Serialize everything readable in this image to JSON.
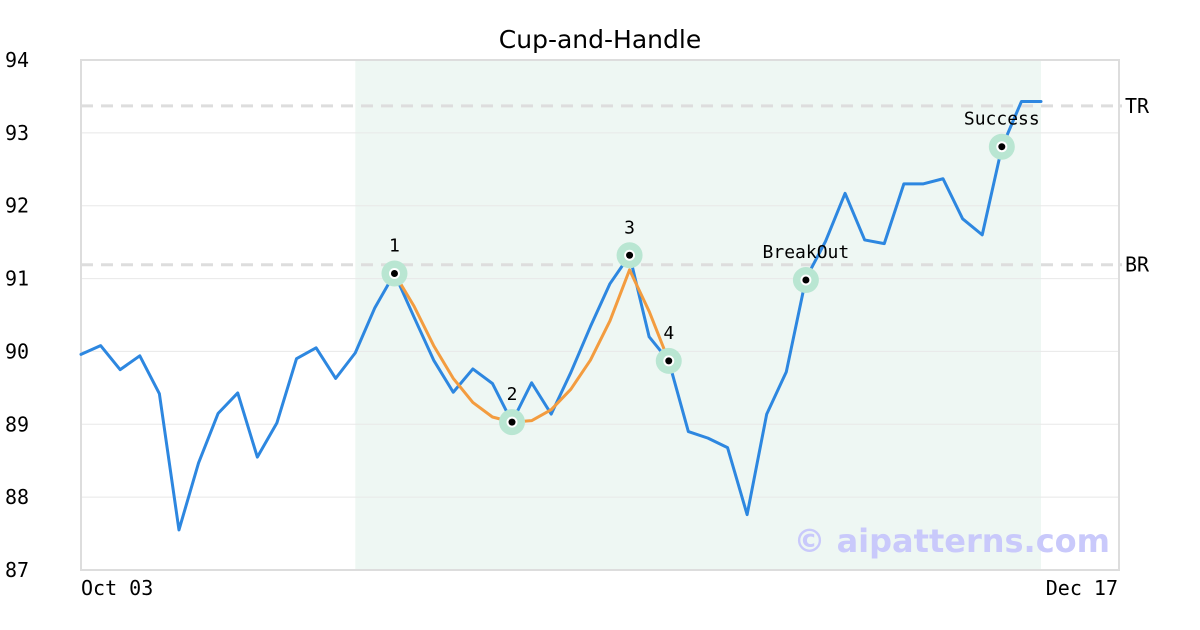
{
  "chart_data": {
    "type": "line",
    "title": "Cup-and-Handle",
    "ylim": [
      87,
      94
    ],
    "yticks": [
      87,
      88,
      89,
      90,
      91,
      92,
      93,
      94
    ],
    "x_start_label": "Oct 03",
    "x_end_label": "Dec 17",
    "grid": "horizontal",
    "series": [
      {
        "values": [
          89.96,
          90.08,
          89.75,
          89.94,
          89.42,
          87.55,
          88.47,
          89.15,
          89.43,
          88.55,
          89.02,
          89.9,
          90.05,
          89.63,
          89.98,
          90.6,
          91.07,
          90.47,
          89.88,
          89.44,
          89.76,
          89.56,
          89.03,
          89.57,
          89.14,
          89.71,
          90.34,
          90.93,
          91.32,
          90.2,
          89.87,
          88.9,
          88.81,
          88.68,
          87.76,
          89.14,
          89.72,
          91.0,
          91.51,
          92.17,
          91.53,
          91.48,
          92.3,
          92.3,
          92.37,
          91.82,
          91.6,
          92.8,
          93.43,
          93.43
        ],
        "color": "#2d87e0"
      },
      {
        "start_index": 16,
        "values": [
          91.07,
          90.62,
          90.08,
          89.63,
          89.3,
          89.1,
          89.03,
          89.05,
          89.2,
          89.48,
          89.88,
          90.42,
          91.12,
          90.55,
          89.87
        ],
        "color": "#f39c3f"
      }
    ],
    "highlight_range": {
      "start_index": 14,
      "end_index": 49
    },
    "reference_lines": [
      {
        "label": "TR",
        "y": 93.37
      },
      {
        "label": "BR",
        "y": 91.19
      }
    ],
    "annotations": [
      {
        "label": "1",
        "index": 16,
        "y": 91.07
      },
      {
        "label": "2",
        "index": 22,
        "y": 89.03
      },
      {
        "label": "3",
        "index": 28,
        "y": 91.32
      },
      {
        "label": "4",
        "index": 30,
        "y": 89.87
      },
      {
        "label": "BreakOut",
        "index": 37,
        "y": 90.98
      },
      {
        "label": "Success",
        "index": 47,
        "y": 92.81
      }
    ]
  },
  "watermark": "© aipatterns.com",
  "colors": {
    "highlight": "#eef7f3",
    "marker_halo": "#b9e6d2",
    "reference_line": "#dddddd",
    "grid": "#e8e8e8",
    "frame": "#dddddd"
  }
}
